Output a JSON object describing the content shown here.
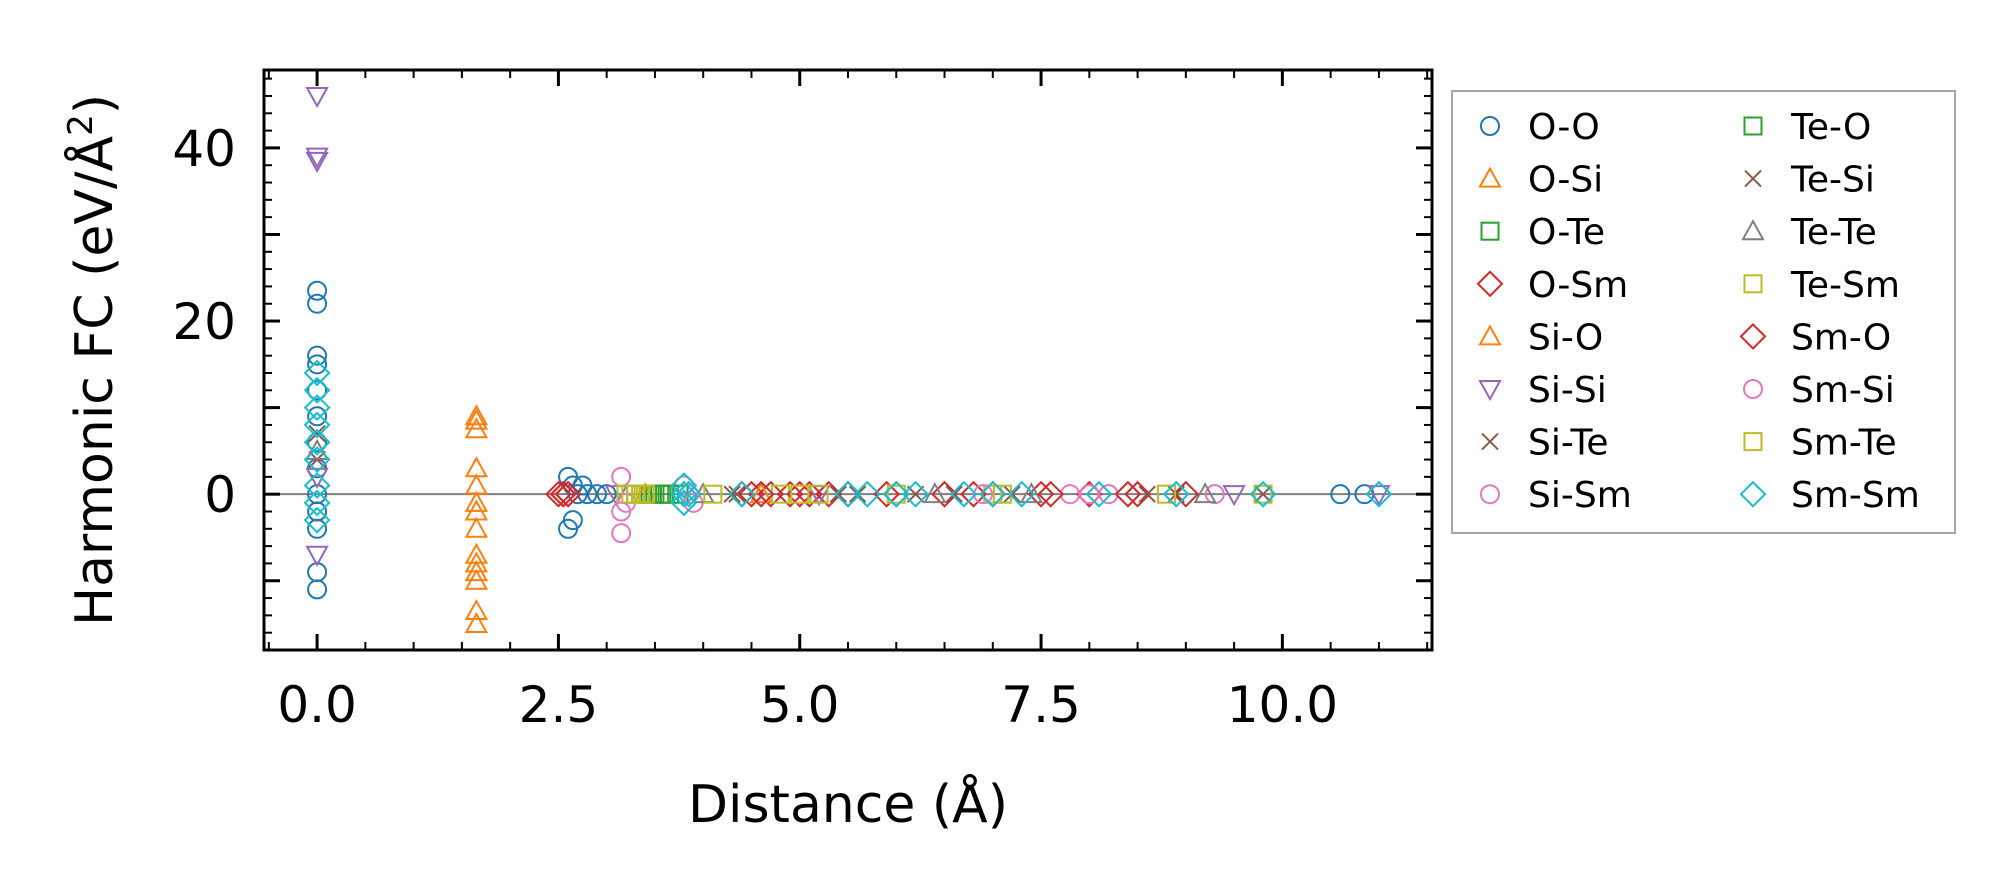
{
  "chart_data": {
    "type": "scatter",
    "title": "",
    "xlabel": "Distance (Å)",
    "ylabel_prefix": "Harmonic FC (eV/Å",
    "ylabel_sup": "2",
    "ylabel_suffix": ")",
    "xlim": [
      -0.55,
      11.55
    ],
    "ylim": [
      -18,
      49
    ],
    "xticks": [
      0,
      2.5,
      5,
      7.5,
      10
    ],
    "xtick_labels": [
      "0.0",
      "2.5",
      "5.0",
      "7.5",
      "10.0"
    ],
    "yticks": [
      -10,
      0,
      10,
      20,
      30,
      40
    ],
    "ytick_labels": [
      "",
      "0",
      "",
      "20",
      "",
      "40"
    ],
    "grid": false,
    "zero_line": true,
    "legend_position": "outside-right",
    "series": [
      {
        "name": "O-O",
        "marker": "circle",
        "color": "#1f77b4",
        "points": [
          [
            0,
            23.5
          ],
          [
            0,
            22
          ],
          [
            0,
            16
          ],
          [
            0,
            15
          ],
          [
            0,
            12
          ],
          [
            0,
            9
          ],
          [
            0,
            6
          ],
          [
            0,
            3
          ],
          [
            0,
            0
          ],
          [
            0,
            -2
          ],
          [
            0,
            -4
          ],
          [
            0,
            -9
          ],
          [
            0,
            -11
          ],
          [
            2.6,
            2
          ],
          [
            2.6,
            -4
          ],
          [
            2.65,
            1
          ],
          [
            2.65,
            -3
          ],
          [
            2.7,
            0
          ],
          [
            2.75,
            1
          ],
          [
            2.8,
            0
          ],
          [
            2.9,
            0
          ],
          [
            3.0,
            0
          ],
          [
            10.6,
            0
          ],
          [
            10.85,
            0
          ]
        ]
      },
      {
        "name": "O-Si",
        "marker": "triangle-up",
        "color": "#ff7f0e",
        "points": [
          [
            1.65,
            9
          ],
          [
            1.65,
            7.5
          ],
          [
            1.65,
            3
          ],
          [
            1.65,
            1
          ],
          [
            1.65,
            -2
          ],
          [
            1.65,
            -4
          ],
          [
            1.65,
            -7
          ],
          [
            1.65,
            -9
          ],
          [
            1.65,
            -10
          ],
          [
            1.65,
            -13.5
          ],
          [
            1.65,
            -15
          ]
        ]
      },
      {
        "name": "O-Te",
        "marker": "square",
        "color": "#2ca02c",
        "points": [
          [
            3.3,
            0
          ],
          [
            3.45,
            0
          ],
          [
            3.5,
            0
          ],
          [
            3.6,
            0
          ],
          [
            3.75,
            0
          ]
        ]
      },
      {
        "name": "O-Sm",
        "marker": "diamond",
        "color": "#d62728",
        "points": [
          [
            2.5,
            0
          ],
          [
            2.55,
            0
          ],
          [
            2.6,
            0
          ],
          [
            4.5,
            0
          ],
          [
            4.7,
            0
          ],
          [
            4.9,
            0
          ],
          [
            5.1,
            0
          ],
          [
            5.3,
            0
          ],
          [
            5.5,
            0
          ],
          [
            6.0,
            0
          ],
          [
            6.5,
            0
          ],
          [
            7.0,
            0
          ],
          [
            7.5,
            0
          ],
          [
            8.0,
            0
          ],
          [
            8.5,
            0
          ]
        ]
      },
      {
        "name": "Si-O",
        "marker": "triangle-up",
        "color": "#ff7f0e",
        "points": [
          [
            1.65,
            8.5
          ],
          [
            1.65,
            -1
          ],
          [
            1.65,
            -8
          ],
          [
            3.4,
            0
          ],
          [
            4.6,
            0
          ]
        ]
      },
      {
        "name": "Si-Si",
        "marker": "triangle-down",
        "color": "#9467bd",
        "points": [
          [
            0,
            46
          ],
          [
            0,
            39
          ],
          [
            0,
            38.5
          ],
          [
            0,
            2
          ],
          [
            0,
            -7
          ],
          [
            3.1,
            0
          ],
          [
            5.2,
            0
          ],
          [
            9.5,
            0
          ],
          [
            11,
            0
          ]
        ]
      },
      {
        "name": "Si-Te",
        "marker": "x",
        "color": "#8c564b",
        "points": [
          [
            0,
            7
          ],
          [
            0,
            4
          ],
          [
            4.3,
            0
          ],
          [
            5.4,
            0
          ],
          [
            6.2,
            0
          ],
          [
            7.2,
            0
          ],
          [
            8.6,
            0
          ],
          [
            9.8,
            0
          ]
        ]
      },
      {
        "name": "Si-Sm",
        "marker": "circle",
        "color": "#e377c2",
        "points": [
          [
            3.15,
            2
          ],
          [
            3.2,
            -1
          ],
          [
            3.15,
            -4.5
          ],
          [
            3.8,
            1
          ],
          [
            3.9,
            -1
          ],
          [
            7.8,
            0
          ],
          [
            8.2,
            0
          ],
          [
            9.3,
            0
          ]
        ]
      },
      {
        "name": "Te-O",
        "marker": "square",
        "color": "#2ca02c",
        "points": [
          [
            3.35,
            0
          ],
          [
            3.55,
            0
          ],
          [
            3.65,
            0
          ]
        ]
      },
      {
        "name": "Te-Si",
        "marker": "x",
        "color": "#8c564b",
        "points": [
          [
            4.35,
            0
          ],
          [
            5.6,
            0
          ],
          [
            6.6,
            0
          ],
          [
            8.9,
            0
          ]
        ]
      },
      {
        "name": "Te-Te",
        "marker": "triangle-up",
        "color": "#7f7f7f",
        "points": [
          [
            0,
            5
          ],
          [
            4.0,
            0
          ],
          [
            6.4,
            0
          ],
          [
            7.4,
            0
          ],
          [
            9.2,
            0
          ]
        ]
      },
      {
        "name": "Te-Sm",
        "marker": "square",
        "color": "#bcbd22",
        "points": [
          [
            3.2,
            0
          ],
          [
            3.25,
            0
          ],
          [
            3.3,
            0
          ],
          [
            3.35,
            0
          ],
          [
            4.1,
            0
          ],
          [
            4.8,
            0
          ],
          [
            5.2,
            0
          ],
          [
            7.0,
            0
          ],
          [
            9.8,
            0
          ]
        ]
      },
      {
        "name": "Sm-O",
        "marker": "diamond",
        "color": "#d62728",
        "points": [
          [
            2.55,
            0
          ],
          [
            2.6,
            0
          ],
          [
            4.4,
            0
          ],
          [
            4.6,
            0
          ],
          [
            5.0,
            0
          ],
          [
            5.9,
            0
          ],
          [
            6.8,
            0
          ],
          [
            7.6,
            0
          ],
          [
            8.4,
            0
          ],
          [
            9.0,
            0
          ]
        ]
      },
      {
        "name": "Sm-Si",
        "marker": "circle",
        "color": "#e377c2",
        "points": [
          [
            3.15,
            -2
          ],
          [
            3.85,
            0
          ],
          [
            6.9,
            0
          ],
          [
            8.0,
            0
          ]
        ]
      },
      {
        "name": "Sm-Te",
        "marker": "square",
        "color": "#bcbd22",
        "points": [
          [
            3.3,
            0
          ],
          [
            3.4,
            0
          ],
          [
            5.0,
            0
          ],
          [
            6.0,
            0
          ],
          [
            7.1,
            0
          ],
          [
            8.8,
            0
          ]
        ]
      },
      {
        "name": "Sm-Sm",
        "marker": "diamond",
        "color": "#17becf",
        "points": [
          [
            0,
            14
          ],
          [
            0,
            12
          ],
          [
            0,
            10
          ],
          [
            0,
            8
          ],
          [
            0,
            6
          ],
          [
            0,
            4
          ],
          [
            0,
            1
          ],
          [
            0,
            -1
          ],
          [
            0,
            -3
          ],
          [
            3.8,
            1
          ],
          [
            3.8,
            0
          ],
          [
            3.8,
            -1
          ],
          [
            3.85,
            0
          ],
          [
            4.4,
            0
          ],
          [
            5.5,
            0
          ],
          [
            5.7,
            0
          ],
          [
            6.0,
            0
          ],
          [
            6.2,
            0
          ],
          [
            6.7,
            0
          ],
          [
            7.0,
            0
          ],
          [
            7.3,
            0
          ],
          [
            8.1,
            0
          ],
          [
            8.9,
            0
          ],
          [
            9.8,
            0
          ],
          [
            11.0,
            0
          ]
        ]
      }
    ]
  }
}
